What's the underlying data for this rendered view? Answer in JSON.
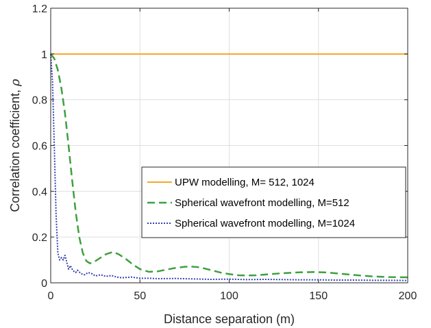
{
  "chart_data": {
    "type": "line",
    "xlabel": "Distance separation (m)",
    "ylabel_text": "Correlation coefficient, ",
    "ylabel_symbol": "ρ",
    "xlim": [
      0,
      200
    ],
    "ylim": [
      0,
      1.2
    ],
    "x_ticks": [
      0,
      50,
      100,
      150,
      200
    ],
    "x_tick_labels": [
      "0",
      "50",
      "100",
      "150",
      "200"
    ],
    "y_ticks": [
      0,
      0.2,
      0.4,
      0.6,
      0.8,
      1,
      1.2
    ],
    "y_tick_labels": [
      "0",
      "0.2",
      "0.4",
      "0.6",
      "0.8",
      "1",
      "1.2"
    ],
    "grid": true,
    "legend_position": "center-right",
    "series": [
      {
        "name": "UPW modelling, M= 512, 1024",
        "color": "#F5A623",
        "style": "solid",
        "x": [
          0,
          200
        ],
        "y": [
          1,
          1
        ]
      },
      {
        "name": "Spherical wavefront modelling, M=512",
        "color": "#3CA03C",
        "style": "dashed",
        "x": [
          0,
          2,
          4,
          6,
          8,
          10,
          12,
          14,
          16,
          18,
          20,
          22,
          25,
          28,
          31,
          35,
          38,
          42,
          46,
          50,
          55,
          60,
          65,
          70,
          75,
          78,
          82,
          86,
          90,
          95,
          100,
          105,
          110,
          115,
          120,
          130,
          140,
          148,
          155,
          162,
          170,
          180,
          190,
          200
        ],
        "y": [
          1.0,
          0.98,
          0.93,
          0.85,
          0.74,
          0.6,
          0.45,
          0.31,
          0.2,
          0.13,
          0.095,
          0.085,
          0.095,
          0.11,
          0.125,
          0.135,
          0.125,
          0.105,
          0.08,
          0.06,
          0.048,
          0.05,
          0.058,
          0.065,
          0.07,
          0.071,
          0.069,
          0.063,
          0.055,
          0.045,
          0.038,
          0.033,
          0.032,
          0.033,
          0.036,
          0.042,
          0.046,
          0.047,
          0.045,
          0.04,
          0.034,
          0.028,
          0.025,
          0.024
        ]
      },
      {
        "name": "Spherical wavefront modelling, M=1024",
        "color": "#2E3DB3",
        "style": "dotted",
        "x": [
          0,
          1,
          2,
          3,
          4,
          5,
          6,
          7,
          8,
          9,
          10,
          11,
          12,
          13,
          14,
          15,
          17,
          19,
          21,
          23,
          25,
          28,
          31,
          34,
          37,
          40,
          45,
          50,
          55,
          60,
          70,
          80,
          90,
          100,
          110,
          120,
          130,
          140,
          150,
          160,
          170,
          180,
          190,
          200
        ],
        "y": [
          1.0,
          0.88,
          0.6,
          0.3,
          0.13,
          0.1,
          0.11,
          0.1,
          0.12,
          0.09,
          0.06,
          0.075,
          0.06,
          0.05,
          0.045,
          0.055,
          0.04,
          0.035,
          0.045,
          0.04,
          0.03,
          0.035,
          0.028,
          0.032,
          0.025,
          0.022,
          0.025,
          0.02,
          0.02,
          0.018,
          0.019,
          0.017,
          0.015,
          0.016,
          0.014,
          0.015,
          0.014,
          0.013,
          0.013,
          0.012,
          0.012,
          0.011,
          0.011,
          0.01
        ]
      }
    ]
  }
}
